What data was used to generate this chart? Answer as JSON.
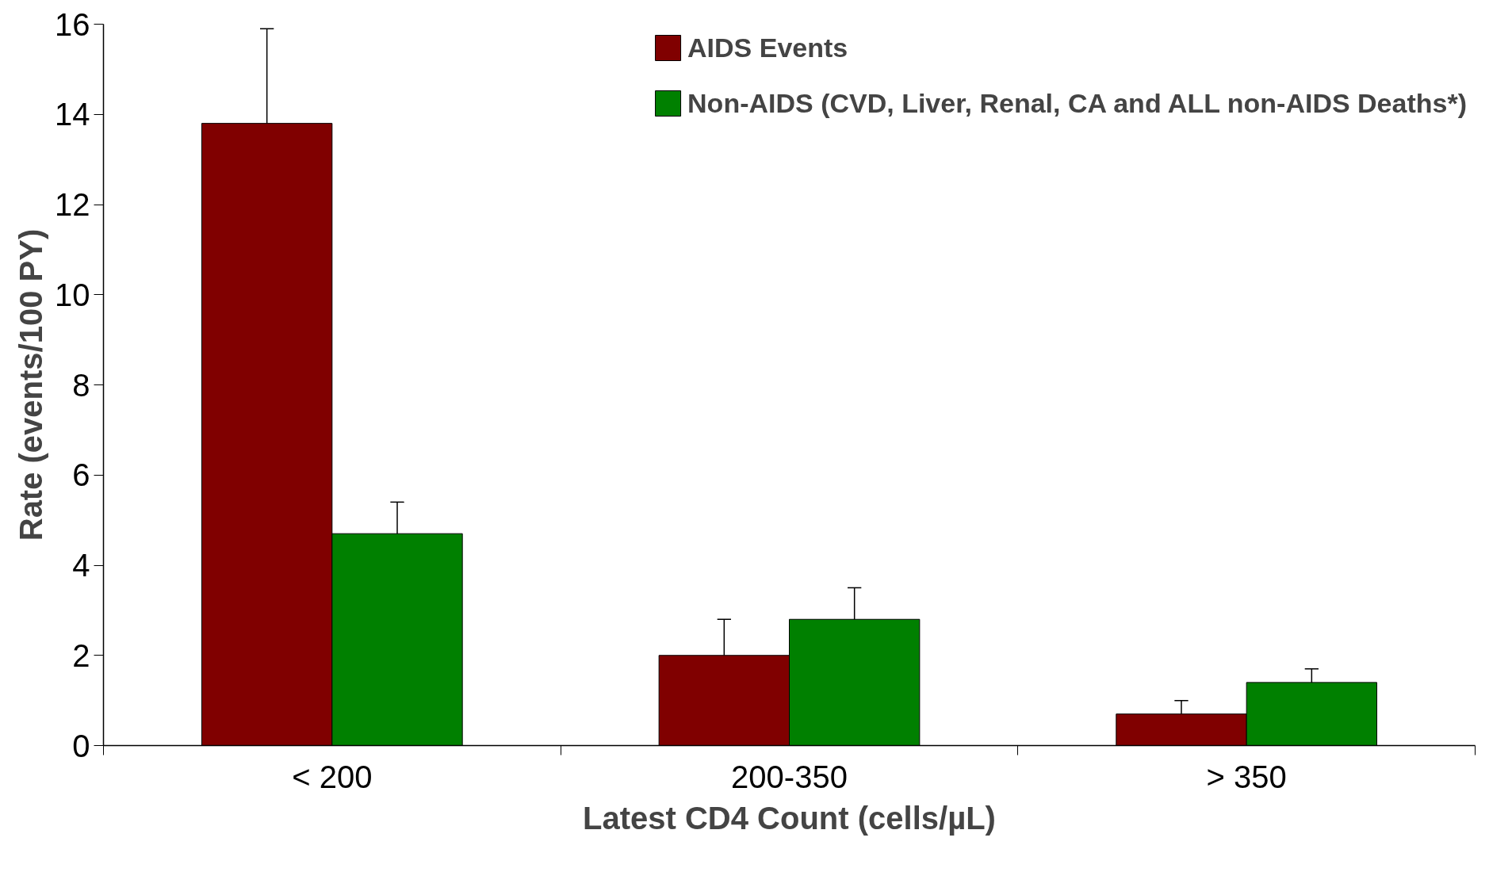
{
  "chart_data": {
    "type": "bar",
    "xlabel": "Latest CD4 Count (cells/µL)",
    "ylabel": "Rate (events/100 PY)",
    "categories": [
      "< 200",
      "200-350",
      "> 350"
    ],
    "series": [
      {
        "name": "AIDS Events",
        "color": "#800000",
        "values": [
          13.8,
          2.0,
          0.7
        ],
        "errors": [
          [
            13.8,
            15.9
          ],
          [
            2.0,
            2.8
          ],
          [
            0.7,
            1.0
          ]
        ]
      },
      {
        "name": "Non-AIDS (CVD, Liver, Renal, CA and ALL non-AIDS Deaths*)",
        "color": "#008000",
        "values": [
          4.7,
          2.8,
          1.4
        ],
        "errors": [
          [
            4.7,
            5.4
          ],
          [
            2.8,
            3.5
          ],
          [
            1.4,
            1.7
          ]
        ]
      }
    ],
    "ylim": [
      0,
      16
    ],
    "yticks": [
      0,
      2,
      4,
      6,
      8,
      10,
      12,
      14,
      16
    ],
    "grid": false,
    "legend": "top right"
  }
}
